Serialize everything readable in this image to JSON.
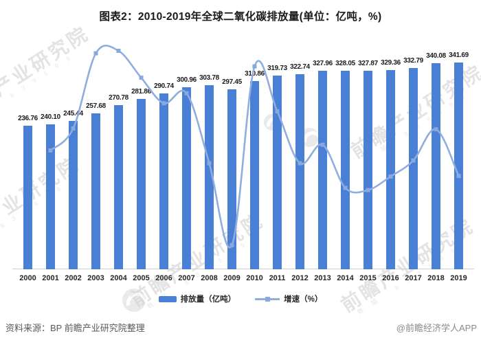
{
  "title": "图表2：2010-2019年全球二氧化碳排放量(单位：亿吨，%)",
  "footer": {
    "source_note": "资料来源：BP 前瞻产业研究院整理",
    "credit": "@前瞻经济学人APP"
  },
  "watermark": {
    "brand": "前瞻产业研究院",
    "sub": "数 据 · 8 3 9 5 9 9"
  },
  "colors": {
    "bar": "#4a7fd6",
    "line": "#8fadff",
    "line_stroke": "#8faddf",
    "marker": "#87a9dc",
    "title_text": "#1a1a1a",
    "axis_line": "#cfcfcf",
    "tick_text": "#262626",
    "source_text": "#595959",
    "credit_text": "#8a8a8a",
    "watermark_text": "#cdcdcd"
  },
  "chart_data": {
    "type": "bar",
    "subtype": "bar-line-combo",
    "title": "图表2：2010-2019年全球二氧化碳排放量(单位：亿吨，%)",
    "categories": [
      "2000",
      "2001",
      "2002",
      "2003",
      "2004",
      "2005",
      "2006",
      "2007",
      "2008",
      "2009",
      "2010",
      "2011",
      "2012",
      "2013",
      "2014",
      "2015",
      "2016",
      "2017",
      "2018",
      "2019"
    ],
    "series": [
      {
        "name": "排放量（亿吨）",
        "type": "bar",
        "values": [
          236.76,
          240.1,
          245.44,
          257.68,
          270.78,
          281.86,
          290.74,
          300.96,
          303.78,
          297.45,
          310.86,
          319.73,
          322.74,
          327.96,
          328.05,
          327.87,
          329.36,
          332.79,
          340.08,
          341.69
        ]
      },
      {
        "name": "增速（%）",
        "type": "line",
        "values": [
          null,
          1.41,
          2.22,
          4.99,
          5.08,
          4.09,
          3.15,
          3.52,
          0.94,
          -2.08,
          4.51,
          2.85,
          0.94,
          1.62,
          0.03,
          -0.05,
          0.45,
          1.04,
          2.19,
          0.47
        ]
      }
    ],
    "value_labels": "bar series only, 2 decimals",
    "xlabel": "",
    "ylabel": "",
    "grid": false,
    "legend_position": "bottom",
    "bar_axis_range": [
      0,
      380
    ],
    "line_axis_range": [
      -3,
      6
    ]
  }
}
